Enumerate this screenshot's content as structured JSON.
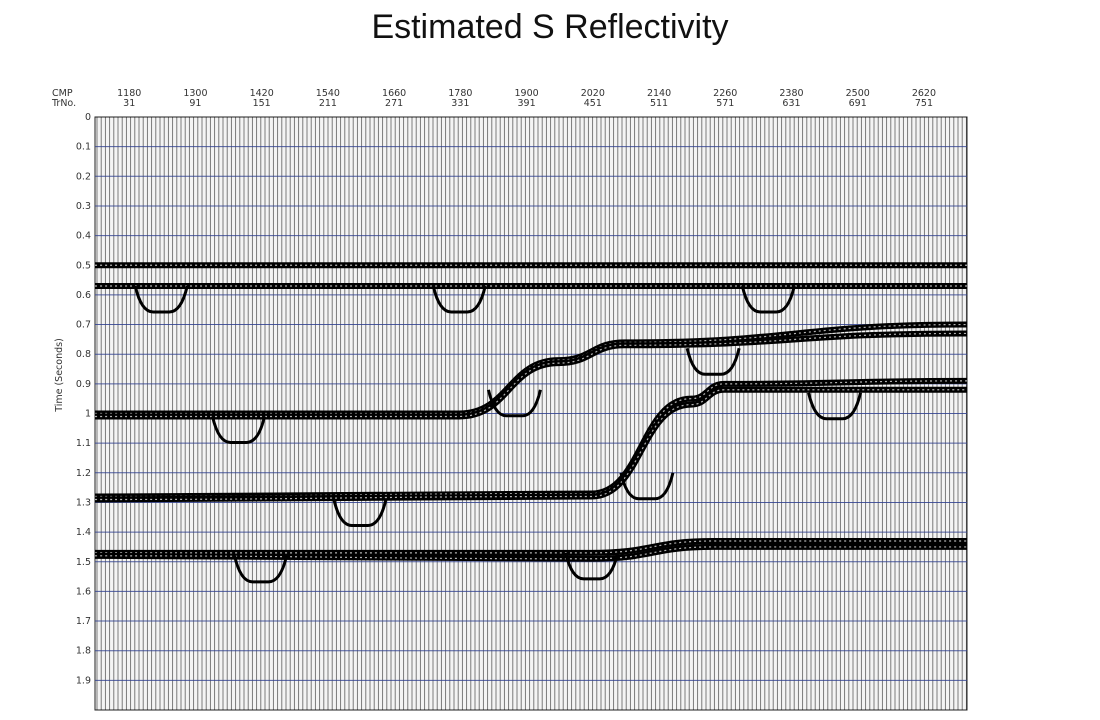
{
  "chart_data": {
    "type": "seismic-section",
    "title": "Estimated S Reflectivity",
    "ylabel": "Time (Seconds)",
    "top_axis_labels": [
      "CMP",
      "TrNo."
    ],
    "cmp": [
      1180,
      1300,
      1420,
      1540,
      1660,
      1780,
      1900,
      2020,
      2140,
      2260,
      2380,
      2500,
      2620
    ],
    "trace_no": [
      31,
      91,
      151,
      211,
      271,
      331,
      391,
      451,
      511,
      571,
      631,
      691,
      751
    ],
    "trace_range": [
      0,
      790
    ],
    "time_ticks": [
      "0",
      "0.1",
      "0.2",
      "0.3",
      "0.4",
      "0.5",
      "0.6",
      "0.7",
      "0.8",
      "0.9",
      "1",
      "1.1",
      "1.2",
      "1.3",
      "1.4",
      "1.5",
      "1.6",
      "1.7",
      "1.8",
      "1.9"
    ],
    "ylim": [
      0,
      2.0
    ],
    "grid": true,
    "grid_color": "#2f3f8f",
    "trace_color": "#000000",
    "reflectors": [
      {
        "points": [
          [
            0,
            0.5
          ],
          [
            790,
            0.5
          ]
        ]
      },
      {
        "points": [
          [
            0,
            0.57
          ],
          [
            790,
            0.57
          ]
        ]
      },
      {
        "points": [
          [
            0,
            1.0
          ],
          [
            330,
            1.0
          ],
          [
            420,
            0.82
          ],
          [
            480,
            0.76
          ],
          [
            790,
            0.7
          ]
        ]
      },
      {
        "points": [
          [
            0,
            1.01
          ],
          [
            330,
            1.01
          ],
          [
            420,
            0.83
          ],
          [
            480,
            0.77
          ],
          [
            790,
            0.73
          ]
        ]
      },
      {
        "points": [
          [
            0,
            1.28
          ],
          [
            450,
            1.27
          ],
          [
            540,
            0.95
          ],
          [
            570,
            0.9
          ],
          [
            790,
            0.89
          ]
        ]
      },
      {
        "points": [
          [
            0,
            1.29
          ],
          [
            450,
            1.28
          ],
          [
            540,
            0.97
          ],
          [
            570,
            0.92
          ],
          [
            790,
            0.92
          ]
        ]
      },
      {
        "points": [
          [
            0,
            1.47
          ],
          [
            450,
            1.47
          ],
          [
            560,
            1.43
          ],
          [
            790,
            1.43
          ]
        ]
      },
      {
        "points": [
          [
            0,
            1.48
          ],
          [
            450,
            1.49
          ],
          [
            560,
            1.45
          ],
          [
            790,
            1.45
          ]
        ]
      }
    ],
    "diffractions": [
      {
        "trace": 60,
        "time": 0.57
      },
      {
        "trace": 330,
        "time": 0.57
      },
      {
        "trace": 610,
        "time": 0.57
      },
      {
        "trace": 130,
        "time": 1.01
      },
      {
        "trace": 380,
        "time": 0.92
      },
      {
        "trace": 560,
        "time": 0.78
      },
      {
        "trace": 670,
        "time": 0.93
      },
      {
        "trace": 240,
        "time": 1.29
      },
      {
        "trace": 150,
        "time": 1.48
      },
      {
        "trace": 450,
        "time": 1.47
      },
      {
        "trace": 500,
        "time": 1.2
      }
    ]
  }
}
